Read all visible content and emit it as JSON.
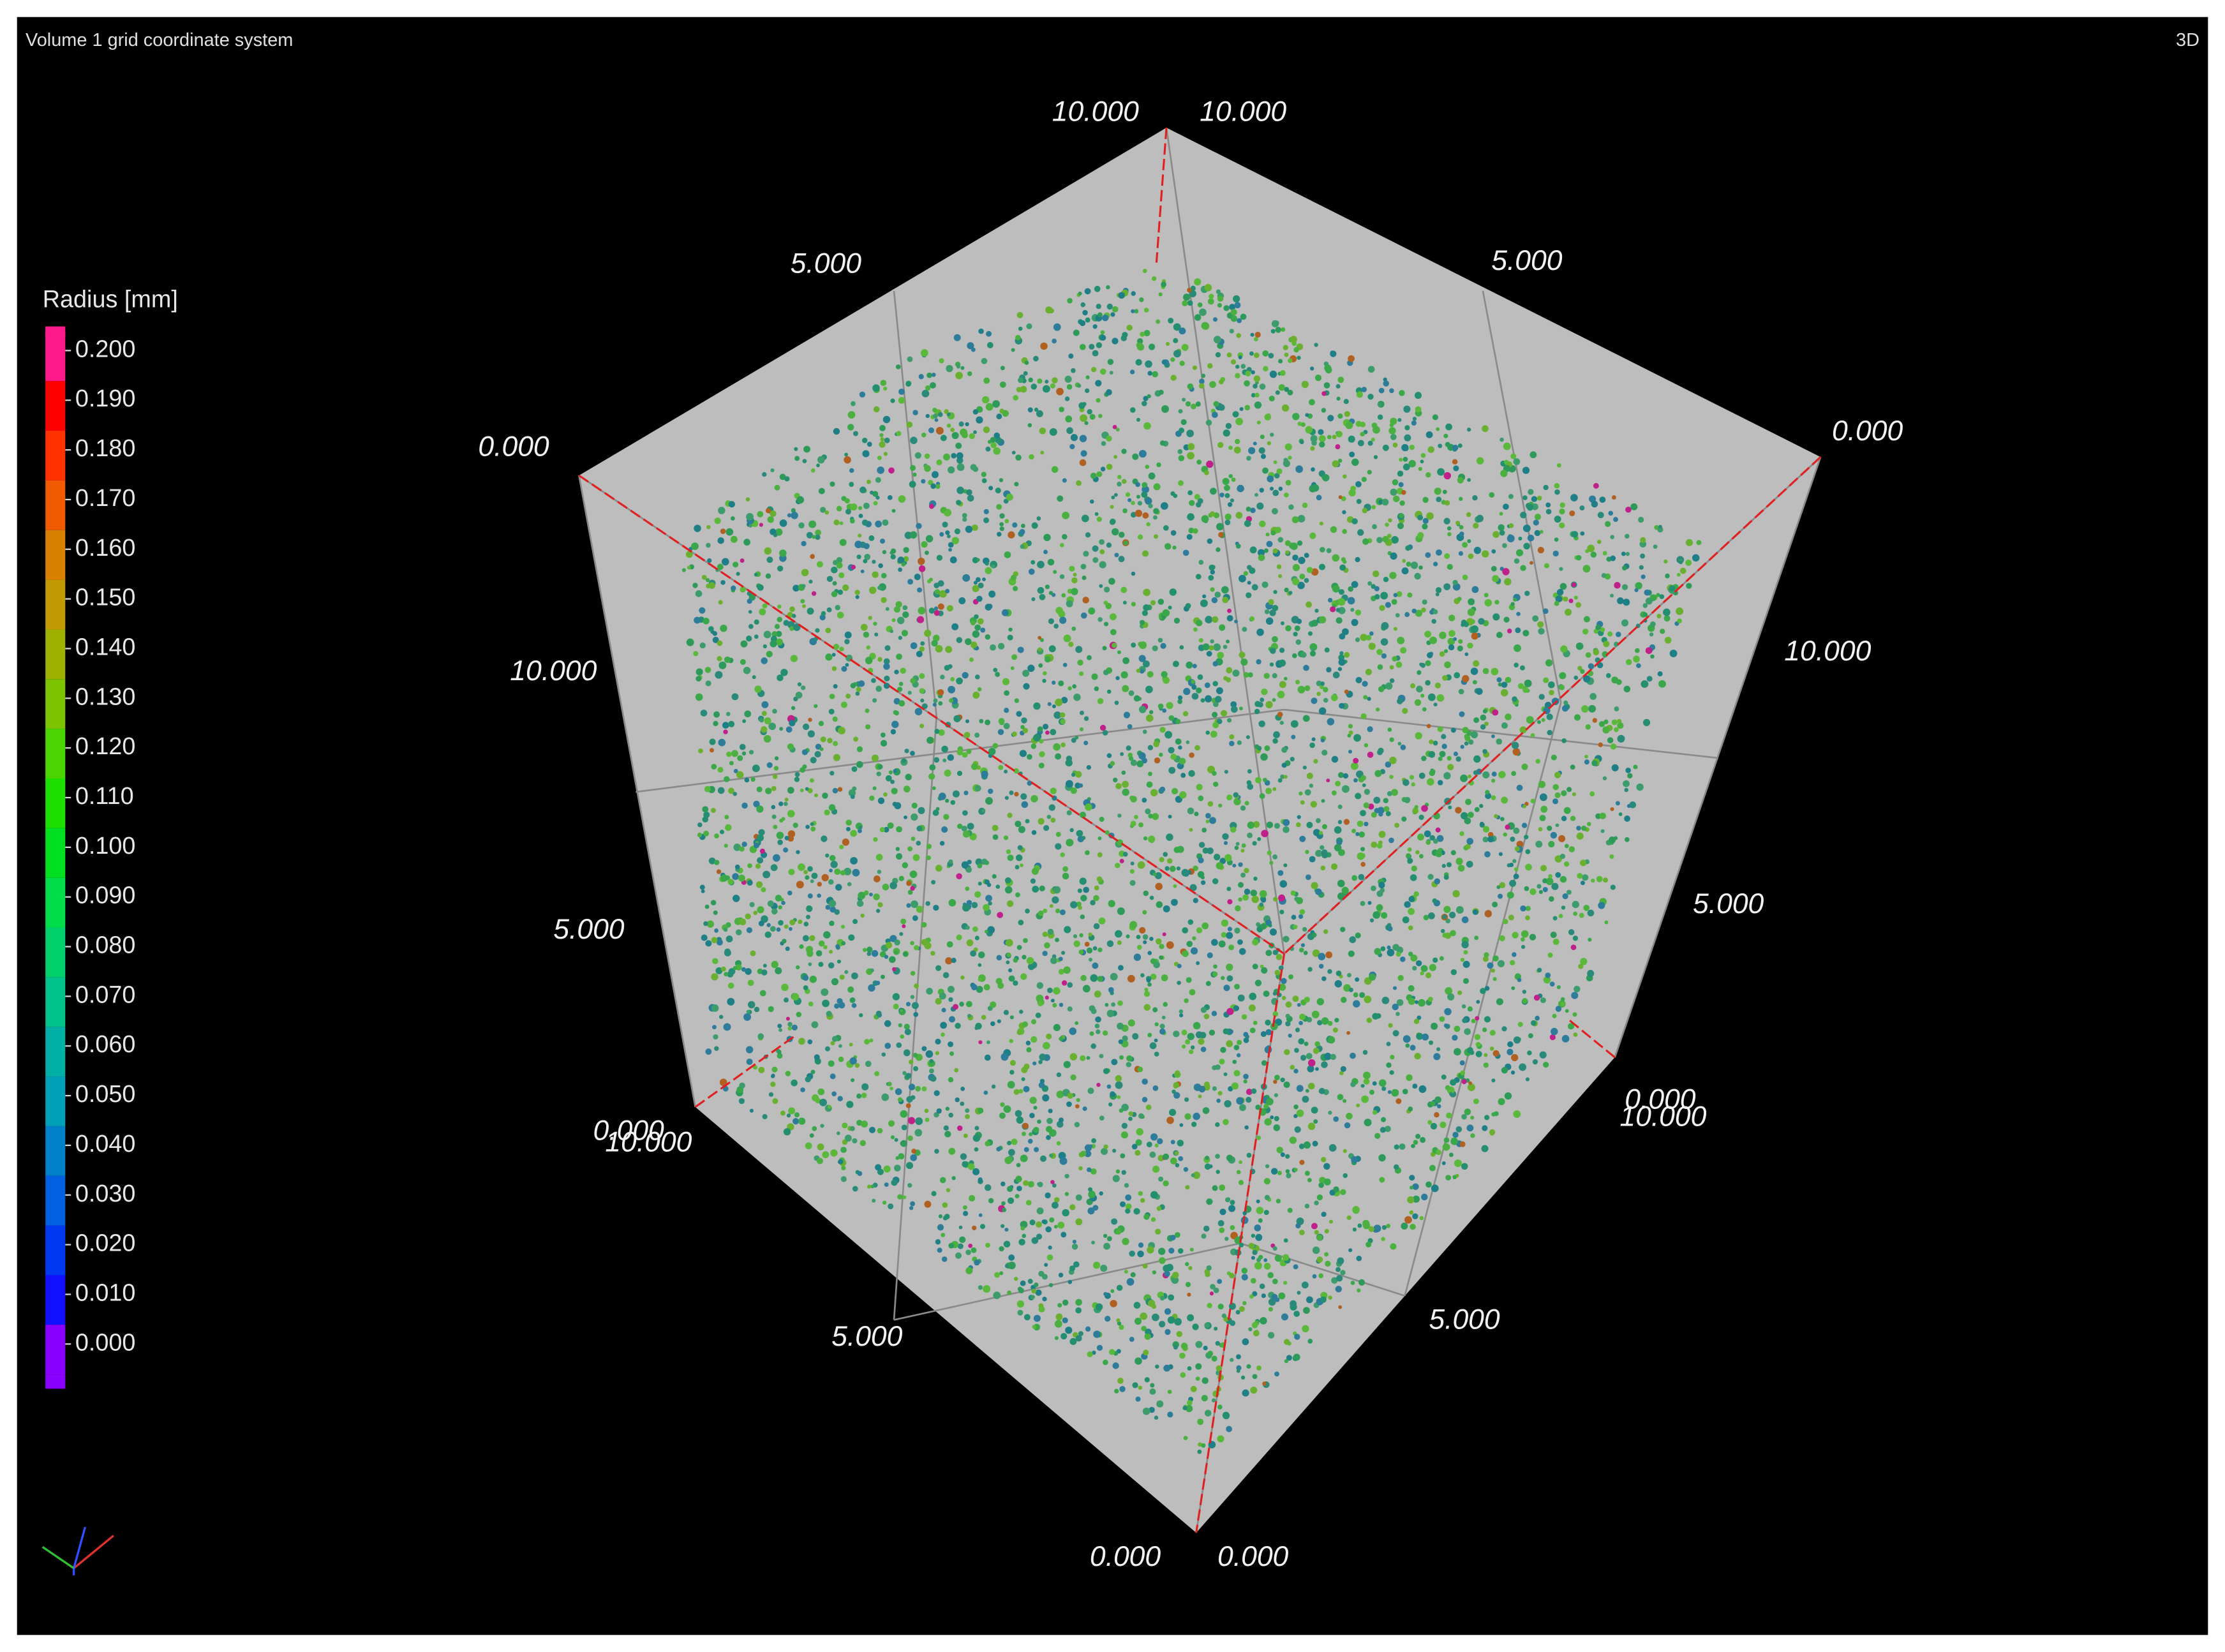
{
  "header": {
    "title": "Volume 1 grid coordinate system",
    "view_mode": "3D"
  },
  "legend": {
    "title": "Radius [mm]",
    "entries": [
      {
        "label": "0.200",
        "color": "#ff1a8c"
      },
      {
        "label": "0.190",
        "color": "#ff0000"
      },
      {
        "label": "0.180",
        "color": "#ff3300"
      },
      {
        "label": "0.170",
        "color": "#f05a00"
      },
      {
        "label": "0.160",
        "color": "#d98000"
      },
      {
        "label": "0.150",
        "color": "#c09a00"
      },
      {
        "label": "0.140",
        "color": "#a0b000"
      },
      {
        "label": "0.130",
        "color": "#7cc400"
      },
      {
        "label": "0.120",
        "color": "#4cd400"
      },
      {
        "label": "0.110",
        "color": "#1ee000"
      },
      {
        "label": "0.100",
        "color": "#00e020"
      },
      {
        "label": "0.090",
        "color": "#00dc4a"
      },
      {
        "label": "0.080",
        "color": "#00d06c"
      },
      {
        "label": "0.070",
        "color": "#00c08c"
      },
      {
        "label": "0.060",
        "color": "#00b0a4"
      },
      {
        "label": "0.050",
        "color": "#00a0b8"
      },
      {
        "label": "0.040",
        "color": "#0080c8"
      },
      {
        "label": "0.030",
        "color": "#0060e0"
      },
      {
        "label": "0.020",
        "color": "#0038f0"
      },
      {
        "label": "0.010",
        "color": "#1010ff"
      },
      {
        "label": "0.000",
        "color": "#8a00ff"
      }
    ]
  },
  "axis_labels": [
    "10.000",
    "10.000",
    "5.000",
    "5.000",
    "0.000",
    "0.000",
    "10.000",
    "10.000",
    "5.000",
    "5.000",
    "0.000",
    "10.000",
    "0.000",
    "10.000",
    "5.000",
    "5.000",
    "0.000",
    "0.000"
  ]
}
